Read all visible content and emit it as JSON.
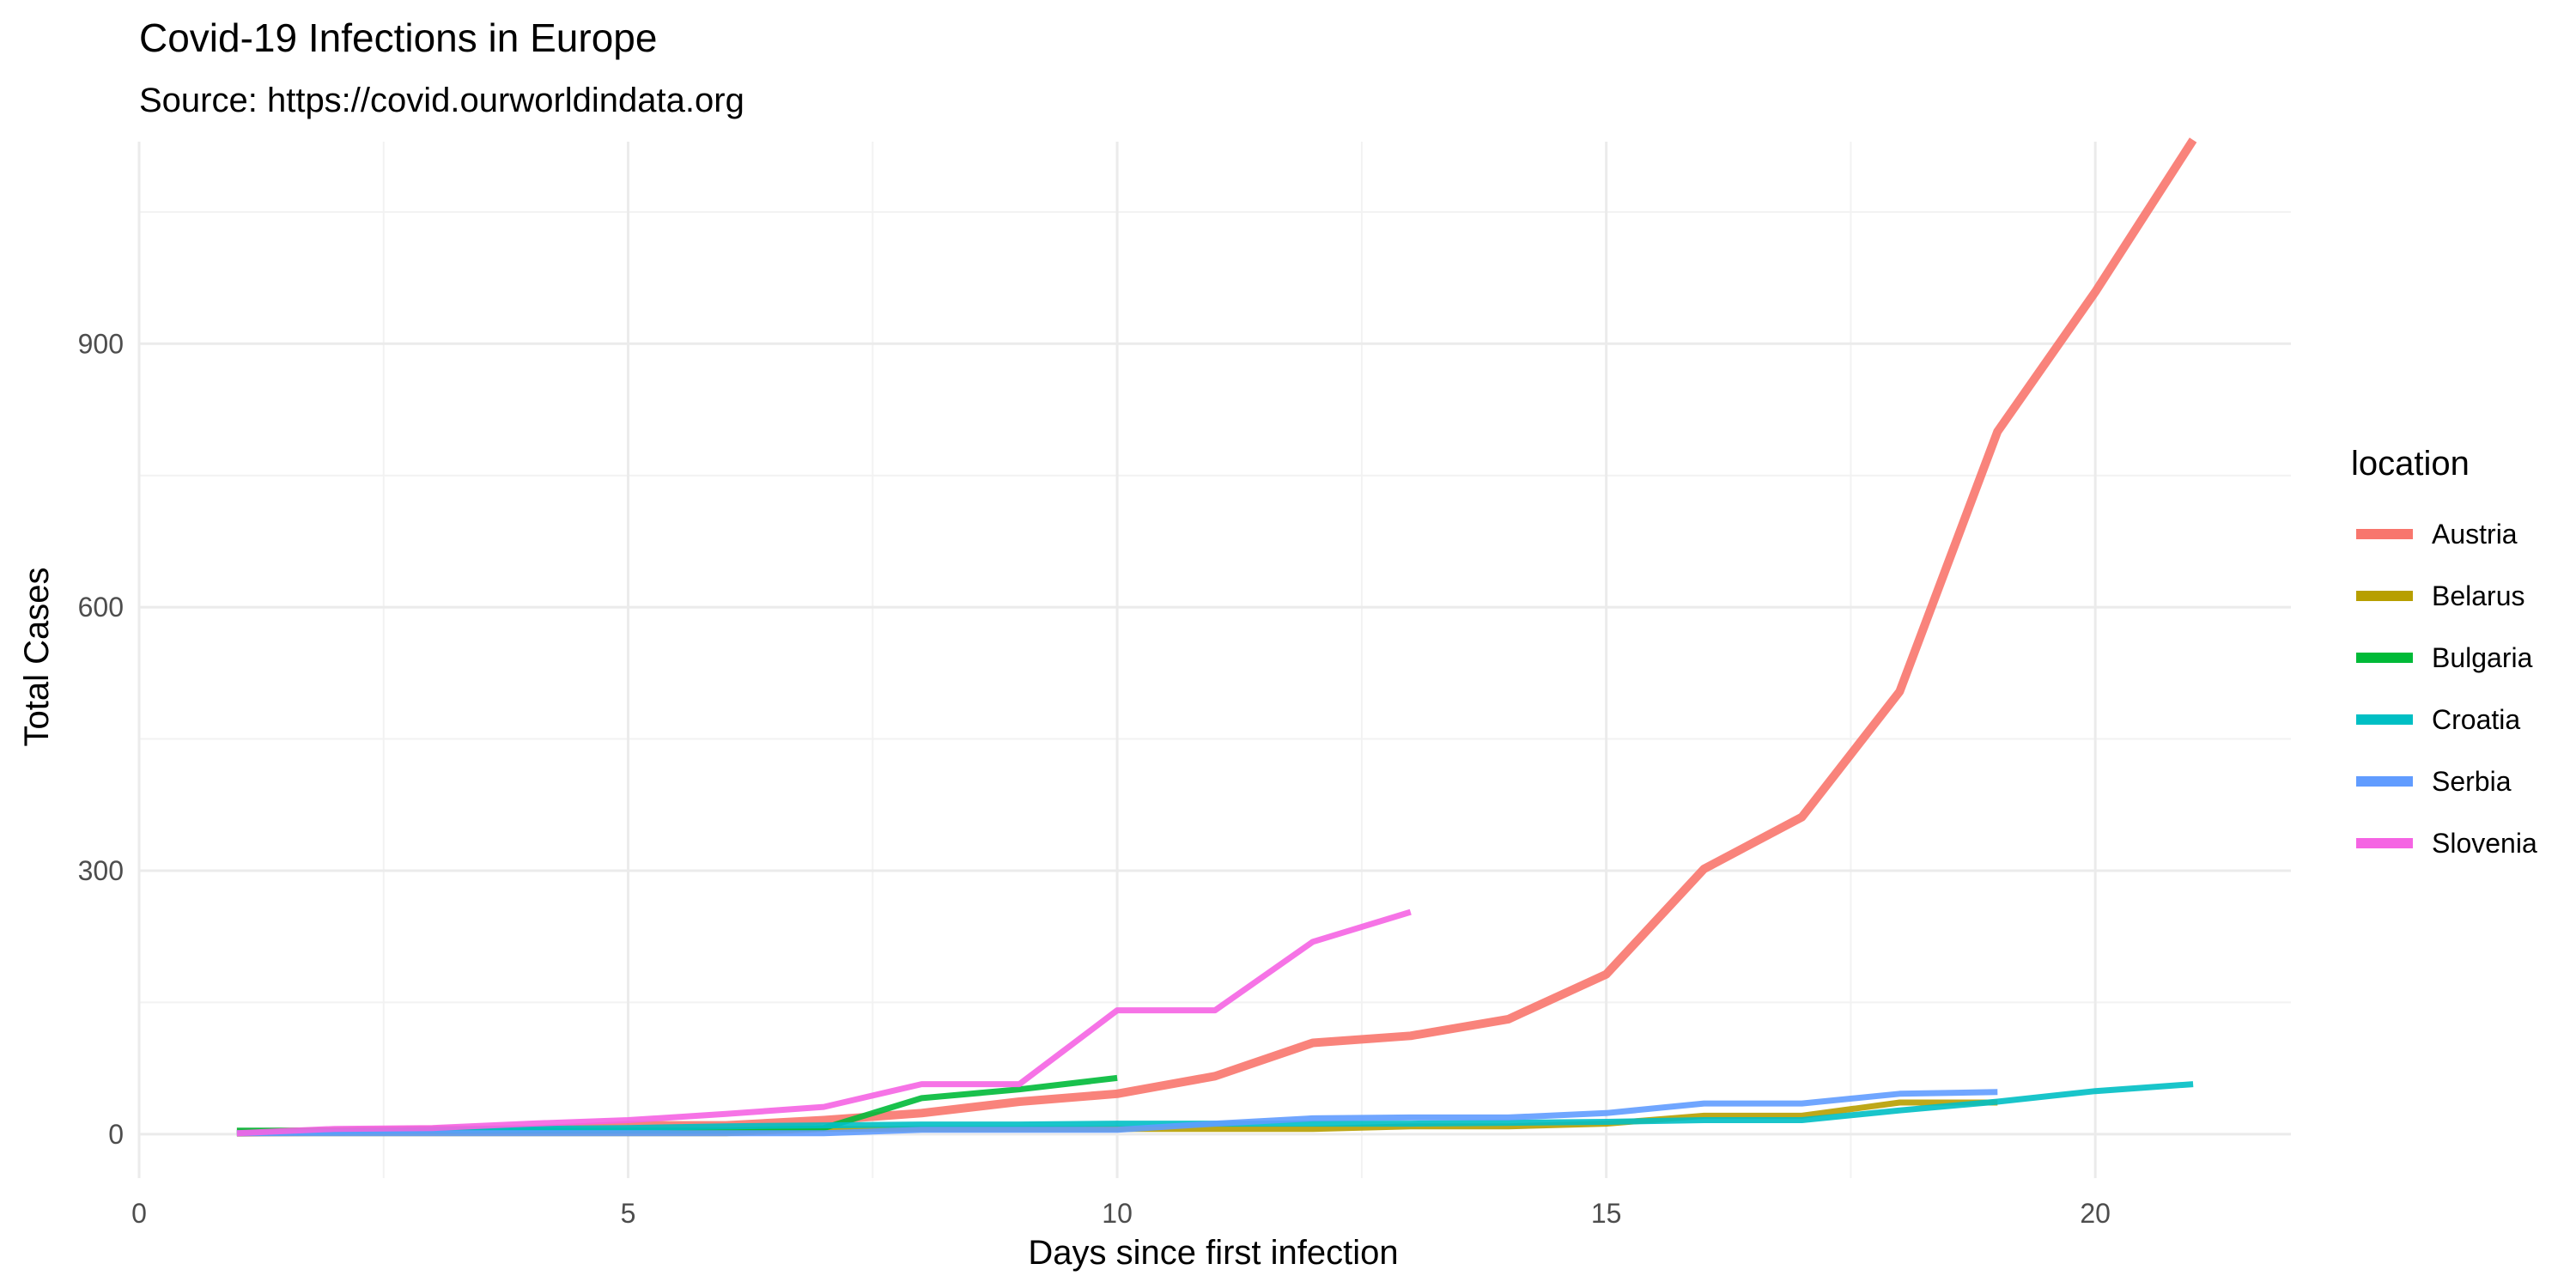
{
  "chart_data": {
    "type": "line",
    "title": "Covid-19 Infections in Europe",
    "subtitle": "Source: https://covid.ourworldindata.org",
    "xlabel": "Days since first infection",
    "ylabel": "Total Cases",
    "xlim": [
      0,
      22
    ],
    "ylim": [
      -50,
      1130
    ],
    "x_ticks": [
      0,
      5,
      10,
      15,
      20
    ],
    "y_ticks": [
      0,
      300,
      600,
      900
    ],
    "grid": true,
    "legend": {
      "title": "location",
      "position": "right"
    },
    "series": [
      {
        "name": "Austria",
        "color": "#F8766D",
        "width": 10,
        "x": [
          1,
          2,
          3,
          4,
          5,
          6,
          7,
          8,
          9,
          10,
          11,
          12,
          13,
          14,
          15,
          16,
          17,
          18,
          19,
          20,
          21
        ],
        "y": [
          2,
          3,
          5,
          5,
          10,
          10,
          16,
          24,
          37,
          46,
          66,
          104,
          112,
          131,
          182,
          302,
          361,
          504,
          800,
          959,
          1132
        ]
      },
      {
        "name": "Belarus",
        "color": "#B79F00",
        "width": 7,
        "x": [
          1,
          2,
          3,
          4,
          5,
          6,
          7,
          8,
          9,
          10,
          11,
          12,
          13,
          14,
          15,
          16,
          17,
          18,
          19
        ],
        "y": [
          1,
          1,
          1,
          1,
          1,
          1,
          6,
          6,
          6,
          6,
          6,
          6,
          9,
          9,
          12,
          21,
          21,
          36,
          36
        ]
      },
      {
        "name": "Bulgaria",
        "color": "#00BA38",
        "width": 7,
        "x": [
          1,
          2,
          3,
          4,
          5,
          6,
          7,
          8,
          9,
          10
        ],
        "y": [
          4,
          4,
          4,
          4,
          4,
          4,
          7,
          41,
          51,
          64
        ]
      },
      {
        "name": "Croatia",
        "color": "#00BFC4",
        "width": 7,
        "x": [
          1,
          2,
          3,
          4,
          5,
          6,
          7,
          8,
          9,
          10,
          11,
          12,
          13,
          14,
          15,
          16,
          17,
          18,
          19,
          20,
          21
        ],
        "y": [
          1,
          3,
          5,
          6,
          7,
          9,
          10,
          11,
          11,
          12,
          12,
          12,
          12,
          13,
          14,
          16,
          16,
          27,
          37,
          49,
          57
        ]
      },
      {
        "name": "Serbia",
        "color": "#619CFF",
        "width": 7,
        "x": [
          1,
          2,
          3,
          4,
          5,
          6,
          7,
          8,
          9,
          10,
          11,
          12,
          13,
          14,
          15,
          16,
          17,
          18,
          19
        ],
        "y": [
          1,
          1,
          1,
          1,
          1,
          1,
          1,
          5,
          5,
          5,
          12,
          18,
          19,
          19,
          24,
          35,
          35,
          46,
          48
        ]
      },
      {
        "name": "Slovenia",
        "color": "#F564E3",
        "width": 7,
        "x": [
          1,
          2,
          3,
          4,
          5,
          6,
          7,
          8,
          9,
          10,
          11,
          12,
          13
        ],
        "y": [
          1,
          6,
          7,
          12,
          16,
          23,
          31,
          57,
          57,
          141,
          141,
          219,
          253
        ]
      }
    ]
  }
}
